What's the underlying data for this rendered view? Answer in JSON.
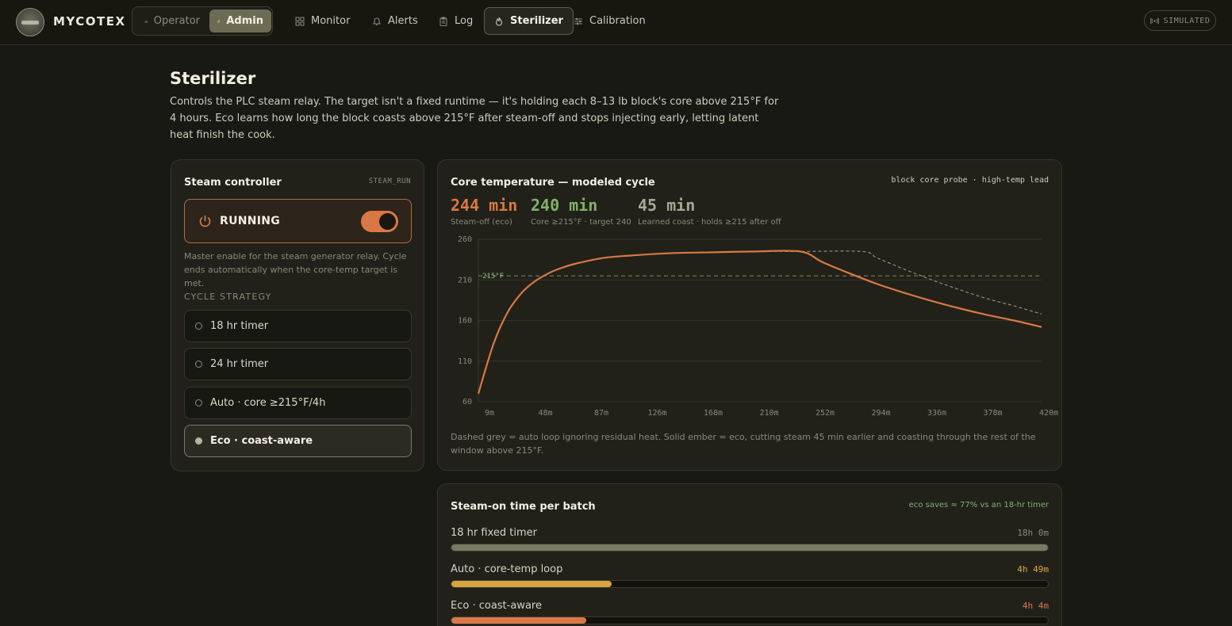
{
  "header": {
    "brand": "MYCOTEX",
    "roles": [
      {
        "label": "Operator",
        "icon": "hard-hat-icon",
        "active": false
      },
      {
        "label": "Admin",
        "icon": "user-gear-icon",
        "active": true
      }
    ],
    "nav": [
      {
        "label": "Monitor",
        "icon": "grid-icon",
        "active": false
      },
      {
        "label": "Alerts",
        "icon": "bell-icon",
        "active": false
      },
      {
        "label": "Log",
        "icon": "clipboard-icon",
        "active": false
      },
      {
        "label": "Sterilizer",
        "icon": "flame-icon",
        "active": true
      },
      {
        "label": "Calibration",
        "icon": "sliders-icon",
        "active": false
      }
    ],
    "mode_badge": "SIMULATED"
  },
  "page": {
    "title": "Sterilizer",
    "description": "Controls the PLC steam relay. The target isn't a fixed runtime — it's holding each 8–13 lb block's core above 215°F for 4 hours. Eco learns how long the block coasts above 215°F after steam-off and stops injecting early, letting latent heat finish the cook."
  },
  "controller": {
    "title": "Steam controller",
    "tag": "STEAM_RUN",
    "status": "RUNNING",
    "enabled": true,
    "help": "Master enable for the steam generator relay. Cycle ends automatically when the core-temp target is met.",
    "strategy_heading": "CYCLE STRATEGY",
    "strategies": [
      {
        "label": "18 hr timer",
        "selected": false
      },
      {
        "label": "24 hr timer",
        "selected": false
      },
      {
        "label": "Auto · core ≥215°F/4h",
        "selected": false
      },
      {
        "label": "Eco · coast-aware",
        "selected": true
      }
    ]
  },
  "core_chart": {
    "title": "Core temperature — modeled cycle",
    "source": "block core probe · high-temp lead",
    "metrics": [
      {
        "value": "244 min",
        "label": "Steam-off (eco)",
        "color": "#d97844"
      },
      {
        "value": "240 min",
        "label": "Core ≥215°F · target 240",
        "color": "#7fb26a"
      },
      {
        "value": "45 min",
        "label": "Learned coast · holds ≥215 after off",
        "color": "#a8a693"
      }
    ],
    "threshold_label": "215°F",
    "footnote": "Dashed grey = auto loop ignoring residual heat. Solid ember = eco, cutting steam 45 min earlier and coasting through the rest of the window above 215°F."
  },
  "chart_data": {
    "type": "line",
    "title": "Core temperature — modeled cycle",
    "xlabel": "",
    "ylabel": "",
    "x_ticks": [
      "9m",
      "48m",
      "87m",
      "126m",
      "168m",
      "210m",
      "252m",
      "294m",
      "336m",
      "378m",
      "420m"
    ],
    "y_ticks": [
      260,
      210,
      160,
      110,
      60
    ],
    "xlim": [
      9,
      420
    ],
    "ylim": [
      60,
      260
    ],
    "grid": true,
    "threshold": 215,
    "series": [
      {
        "style": "solid",
        "color": "#d97844",
        "x": [
          9,
          20,
          30,
          40,
          50,
          60,
          70,
          80,
          100,
          120,
          150,
          180,
          210,
          244,
          260,
          280,
          300,
          320,
          340,
          360,
          380,
          400,
          420
        ],
        "y": [
          70,
          131,
          169,
          193,
          208,
          218,
          225,
          230,
          237,
          240,
          243,
          244,
          245,
          245,
          232,
          218,
          205,
          194,
          184,
          175,
          167,
          160,
          152
        ]
      },
      {
        "style": "dashed",
        "color": "#8f8d80",
        "x": [
          9,
          20,
          30,
          40,
          50,
          60,
          70,
          80,
          100,
          120,
          150,
          180,
          210,
          244,
          289,
          300,
          320,
          340,
          360,
          380,
          400,
          420
        ],
        "y": [
          70,
          131,
          169,
          193,
          208,
          218,
          225,
          230,
          237,
          240,
          243,
          244,
          245,
          245,
          245,
          237,
          223,
          210,
          198,
          187,
          178,
          168
        ]
      }
    ]
  },
  "steam_time": {
    "title": "Steam-on time per batch",
    "note": "eco saves ≈ 77% vs an 18-hr timer",
    "rows": [
      {
        "label": "18 hr fixed timer",
        "value": "18h 0m",
        "fraction": 1.0,
        "color": "#7a7a63",
        "value_color": "#8a887a"
      },
      {
        "label": "Auto · core-temp loop",
        "value": "4h 49m",
        "fraction": 0.268,
        "color": "#d6a33e",
        "value_color": "#e0a744"
      },
      {
        "label": "Eco · coast-aware",
        "value": "4h 4m",
        "fraction": 0.226,
        "color": "#d97844",
        "value_color": "#d97844"
      }
    ]
  }
}
